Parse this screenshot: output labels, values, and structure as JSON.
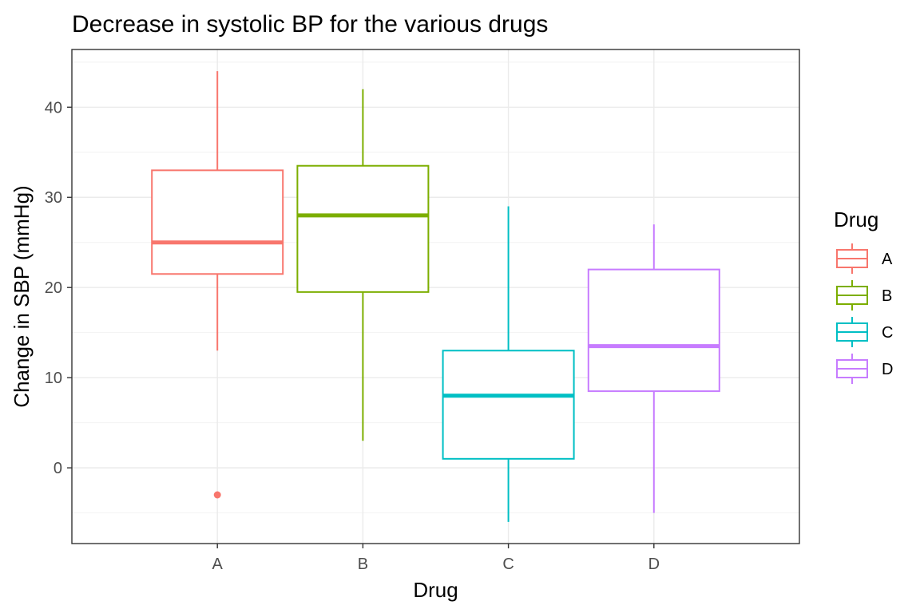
{
  "chart_data": {
    "type": "boxplot",
    "title": "Decrease in systolic BP for the various drugs",
    "xlabel": "Drug",
    "ylabel": "Change in SBP (mmHg)",
    "ylim": [
      -8.4,
      46.4
    ],
    "y_ticks": [
      0,
      10,
      20,
      30,
      40
    ],
    "y_tick_labels": [
      "0",
      "10",
      "20",
      "30",
      "40"
    ],
    "grid": true,
    "legend_title": "Drug",
    "legend_position": "right",
    "categories": [
      "A",
      "B",
      "C",
      "D"
    ],
    "boxes": [
      {
        "name": "A",
        "color": "#F8766D",
        "whisker_low": 13,
        "q1": 21.5,
        "median": 25,
        "q3": 33,
        "whisker_high": 44,
        "outliers": [
          -3
        ]
      },
      {
        "name": "B",
        "color": "#7CAE00",
        "whisker_low": 3,
        "q1": 19.5,
        "median": 28,
        "q3": 33.5,
        "whisker_high": 42,
        "outliers": []
      },
      {
        "name": "C",
        "color": "#00BFC4",
        "whisker_low": -6,
        "q1": 1,
        "median": 8,
        "q3": 13,
        "whisker_high": 29,
        "outliers": []
      },
      {
        "name": "D",
        "color": "#C77CFF",
        "whisker_low": -5,
        "q1": 8.5,
        "median": 13.5,
        "q3": 22,
        "whisker_high": 27,
        "outliers": []
      }
    ]
  }
}
